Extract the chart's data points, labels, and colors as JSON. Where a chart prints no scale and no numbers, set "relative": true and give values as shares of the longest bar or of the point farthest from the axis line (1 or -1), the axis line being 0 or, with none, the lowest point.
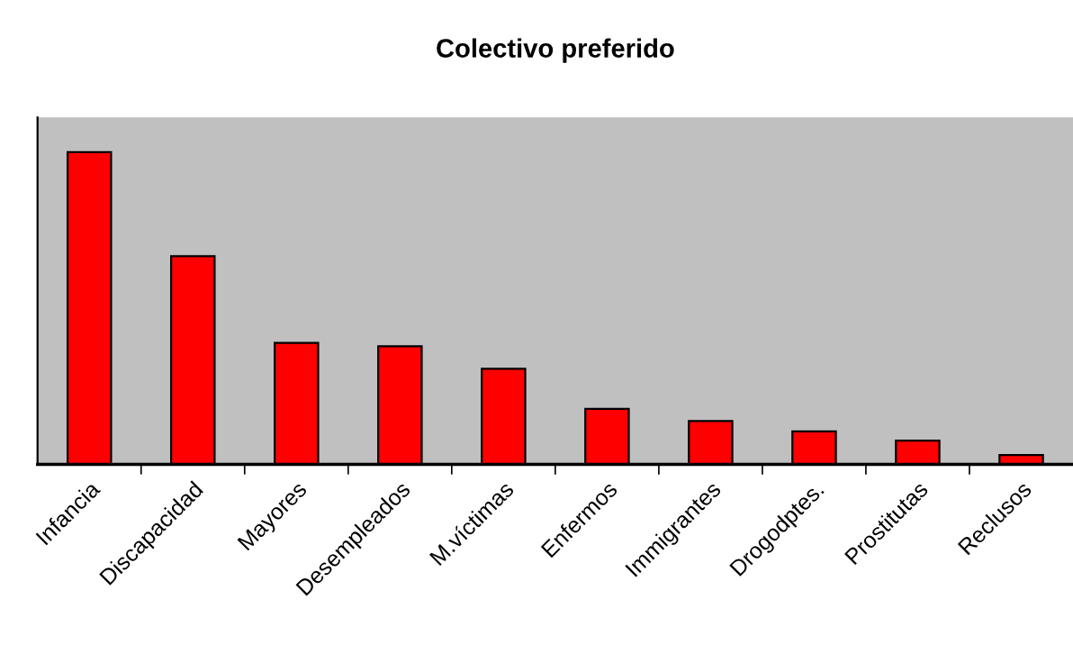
{
  "chart_data": {
    "type": "bar",
    "title": "Colectivo preferido",
    "categories": [
      "Infancia",
      "Discapacidad",
      "Mayores",
      "Desempleados",
      "M.víctimas",
      "Enfermos",
      "Immigrantes",
      "Drogodptes.",
      "Prostitutas",
      "Reclusos"
    ],
    "values": [
      1,
      0.667,
      0.389,
      0.378,
      0.306,
      0.178,
      0.139,
      0.106,
      0.076,
      0.03
    ],
    "color": "#ff0000",
    "relative": true,
    "grid": false,
    "legend": false
  }
}
